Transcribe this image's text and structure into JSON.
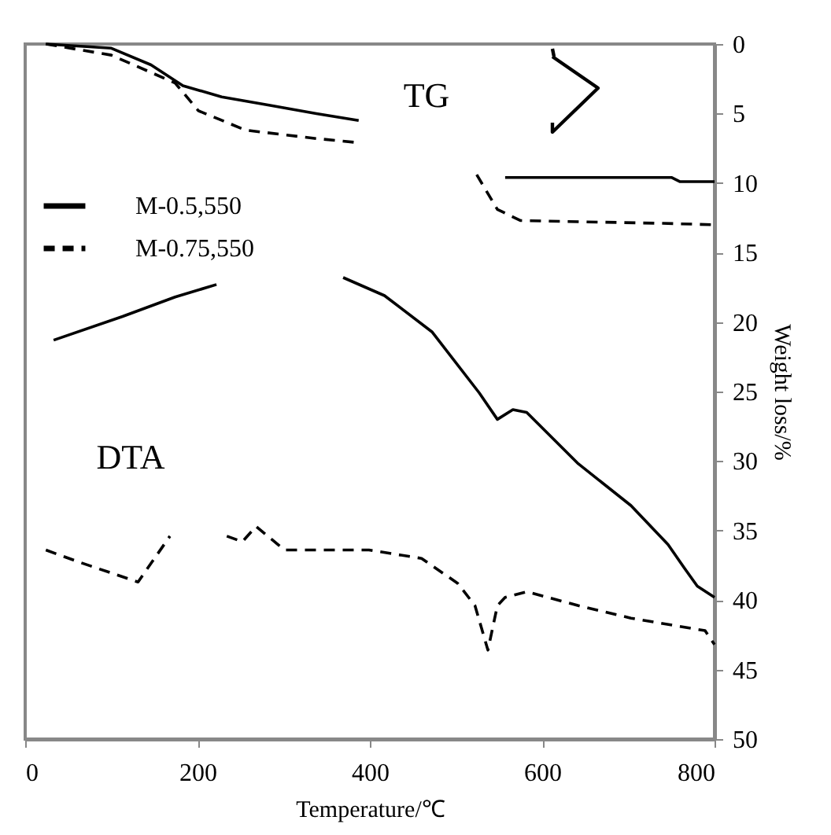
{
  "chart_data": {
    "type": "line",
    "xlabel": "Temperature/℃",
    "ylabel": "Weight loss/%",
    "xlim": [
      0,
      800
    ],
    "xticks": [
      0,
      200,
      400,
      600,
      800
    ],
    "ylim": [
      50,
      0
    ],
    "yticks": [
      0,
      5,
      10,
      15,
      20,
      25,
      30,
      35,
      40,
      45,
      50
    ],
    "grid": false,
    "legend": "top left",
    "marker": "none",
    "annotations": [
      "TG",
      "DTA"
    ],
    "series": [
      {
        "name": "M-0.5,550",
        "color": "#000000",
        "line_style": "solid",
        "x": [
          24,
          100,
          146,
          183,
          228,
          283,
          338,
          387,
          470,
          557,
          750,
          760,
          800
        ],
        "values": [
          0,
          0.3,
          1.5,
          3.0,
          3.8,
          4.4,
          5.0,
          5.5,
          null,
          9.6,
          9.6,
          9.9,
          9.9
        ]
      },
      {
        "name": "M-0.75,550",
        "color": "#000000",
        "line_style": "dashed",
        "x": [
          24,
          100,
          174,
          201,
          256,
          338,
          387,
          455,
          524,
          548,
          575,
          740,
          800
        ],
        "values": [
          0,
          0.8,
          2.8,
          4.8,
          6.2,
          6.8,
          7.1,
          null,
          9.4,
          11.9,
          12.7,
          12.9,
          13.0
        ]
      },
      {
        "color": "#000000",
        "line_style": "solid",
        "x": [
          33,
          113,
          174,
          222,
          300,
          369,
          417,
          472,
          527,
          548,
          566,
          582,
          642,
          703,
          746,
          765,
          780,
          800
        ],
        "values": [
          21.3,
          19.6,
          18.2,
          17.3,
          null,
          16.8,
          18.1,
          20.7,
          25.1,
          27.0,
          26.3,
          26.5,
          30.2,
          33.2,
          36.0,
          37.7,
          39.0,
          39.8
        ]
      },
      {
        "color": "#000000",
        "line_style": "dashed",
        "x": [
          24,
          64,
          131,
          168,
          200,
          234,
          252,
          268,
          301,
          399,
          460,
          502,
          522,
          537,
          548,
          557,
          582,
          642,
          703,
          789,
          800
        ],
        "values": [
          36.4,
          37.3,
          38.7,
          35.4,
          null,
          35.4,
          35.8,
          34.7,
          36.4,
          36.4,
          37.0,
          38.8,
          40.4,
          43.6,
          40.4,
          39.8,
          39.4,
          40.4,
          41.3,
          42.2,
          43.2
        ]
      }
    ]
  }
}
